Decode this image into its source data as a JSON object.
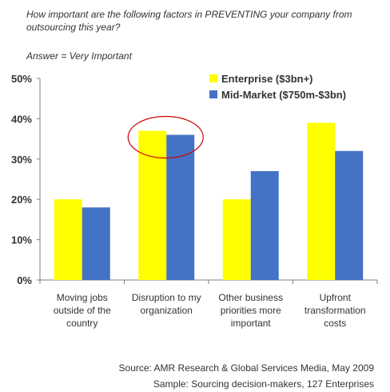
{
  "chart_data": {
    "type": "bar",
    "title": "How important are the following factors in PREVENTING your company from outsourcing this year?",
    "subtitle": "Answer = Very Important",
    "categories": [
      "Moving jobs outside of the country",
      "Disruption to my organization",
      "Other business priorities more important",
      "Upfront transformation costs"
    ],
    "category_lines": [
      [
        "Moving jobs",
        "outside of the",
        "country"
      ],
      [
        "Disruption to my",
        "organization"
      ],
      [
        "Other business",
        "priorities more",
        "important"
      ],
      [
        "Upfront",
        "transformation",
        "costs"
      ]
    ],
    "series": [
      {
        "name": "Enterprise ($3bn+)",
        "color": "#ffff00",
        "values": [
          20,
          37,
          20,
          39
        ]
      },
      {
        "name": "Mid-Market ($750m-$3bn)",
        "color": "#4472c4",
        "values": [
          18,
          36,
          27,
          32
        ]
      }
    ],
    "ylim": [
      0,
      50
    ],
    "yticks": [
      "0%",
      "10%",
      "20%",
      "30%",
      "40%",
      "50%"
    ],
    "legend_position": "top-right",
    "grid": false,
    "annotation": "red ellipse around Disruption to my organization bars",
    "annotation_color": "#d00000",
    "source": "Source:  AMR Research & Global Services Media, May 2009",
    "sample": "Sample:  Sourcing decision-makers, 127 Enterprises"
  }
}
